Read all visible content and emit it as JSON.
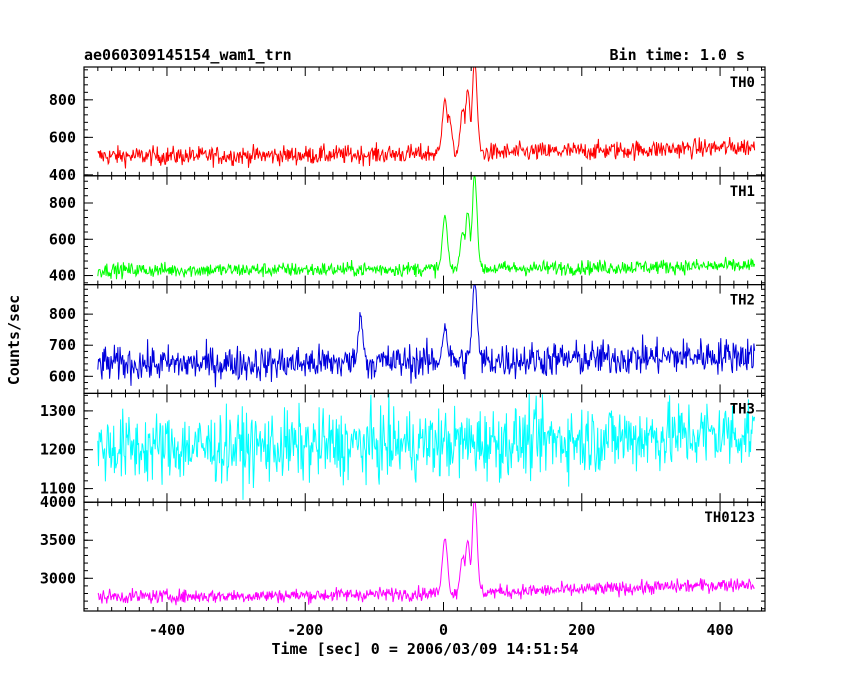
{
  "chart_data": {
    "type": "line",
    "title": "ae060309145154_wam1_trn",
    "subtitle": "Bin time: 1.0 s",
    "xlabel": "Time [sec] 0 = 2006/03/09 14:51:54",
    "ylabel": "Counts/sec",
    "xlim": [
      -520,
      465
    ],
    "x_range": [
      -500,
      450
    ],
    "xticks": [
      -400,
      -200,
      0,
      200,
      400
    ],
    "grid": false,
    "panels": [
      {
        "name": "TH0",
        "color": "#ff0000",
        "ylim": [
          395,
          975
        ],
        "yticks": [
          400,
          600,
          800
        ],
        "baseline_start": 500,
        "baseline_end": 550,
        "noise": 25,
        "peaks": [
          {
            "x": 2,
            "y": 800
          },
          {
            "x": 8,
            "y": 700
          },
          {
            "x": 28,
            "y": 730
          },
          {
            "x": 35,
            "y": 840
          },
          {
            "x": 45,
            "y": 990
          }
        ]
      },
      {
        "name": "TH1",
        "color": "#00ff00",
        "ylim": [
          350,
          950
        ],
        "yticks": [
          400,
          600,
          800
        ],
        "baseline_start": 430,
        "baseline_end": 455,
        "noise": 20,
        "peaks": [
          {
            "x": 2,
            "y": 720
          },
          {
            "x": 28,
            "y": 640
          },
          {
            "x": 35,
            "y": 740
          },
          {
            "x": 45,
            "y": 950
          }
        ]
      },
      {
        "name": "TH2",
        "color": "#0000dd",
        "ylim": [
          545,
          895
        ],
        "yticks": [
          600,
          700,
          800
        ],
        "baseline_start": 640,
        "baseline_end": 670,
        "noise": 28,
        "peaks": [
          {
            "x": -120,
            "y": 785
          },
          {
            "x": 2,
            "y": 750
          },
          {
            "x": 45,
            "y": 895
          }
        ]
      },
      {
        "name": "TH3",
        "color": "#00ffff",
        "ylim": [
          1065,
          1345
        ],
        "yticks": [
          1100,
          1200,
          1300
        ],
        "baseline_start": 1205,
        "baseline_end": 1245,
        "noise": 45,
        "peaks": []
      },
      {
        "name": "TH0123",
        "color": "#ff00ff",
        "ylim": [
          2570,
          4000
        ],
        "yticks": [
          3000,
          3500,
          4000
        ],
        "baseline_start": 2760,
        "baseline_end": 2930,
        "noise": 45,
        "peaks": [
          {
            "x": 2,
            "y": 3500
          },
          {
            "x": 28,
            "y": 3250
          },
          {
            "x": 35,
            "y": 3450
          },
          {
            "x": 45,
            "y": 4000
          }
        ]
      }
    ]
  }
}
